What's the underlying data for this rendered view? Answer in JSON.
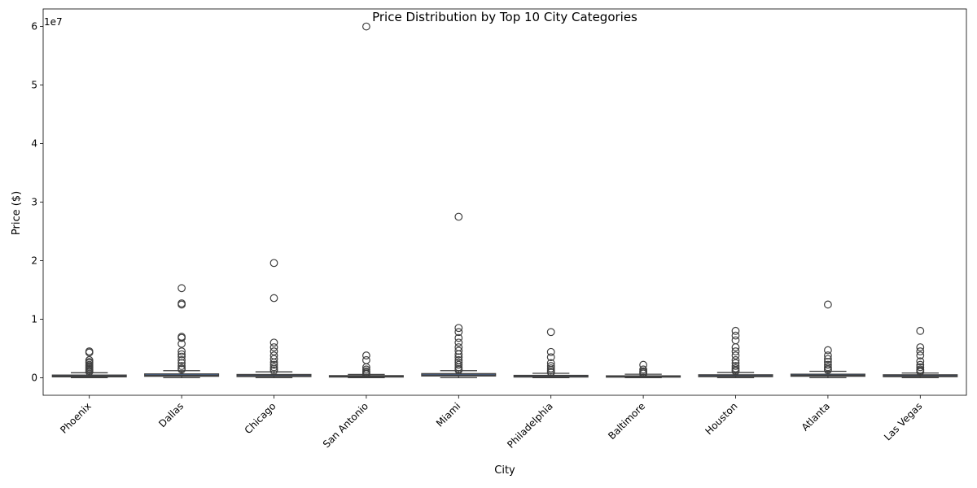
{
  "chart_data": {
    "type": "box",
    "title": "Price Distribution by Top 10 City Categories",
    "xlabel": "City",
    "ylabel": "Price ($)",
    "y_offset_label": "1e7",
    "y_ticks": [
      0,
      1,
      2,
      3,
      4,
      5,
      6
    ],
    "ylim": [
      -0.3,
      6.3
    ],
    "grid": false,
    "box_color": "#4c72b0",
    "categories": [
      "Phoenix",
      "Dallas",
      "Chicago",
      "San Antonio",
      "Miami",
      "Philadelphia",
      "Baltimore",
      "Houston",
      "Atlanta",
      "Las Vegas"
    ],
    "boxes": [
      {
        "q1": 0.015,
        "median": 0.028,
        "q3": 0.045,
        "whisker_low": 0.0,
        "whisker_high": 0.085,
        "outliers": [
          0.45,
          0.43,
          0.3,
          0.27,
          0.25,
          0.22,
          0.2,
          0.18,
          0.16,
          0.14,
          0.12,
          0.1
        ]
      },
      {
        "q1": 0.025,
        "median": 0.04,
        "q3": 0.065,
        "whisker_low": 0.0,
        "whisker_high": 0.12,
        "outliers": [
          1.53,
          1.27,
          1.25,
          0.7,
          0.68,
          0.58,
          0.45,
          0.4,
          0.36,
          0.3,
          0.25,
          0.2,
          0.16,
          0.14
        ]
      },
      {
        "q1": 0.02,
        "median": 0.035,
        "q3": 0.055,
        "whisker_low": 0.0,
        "whisker_high": 0.1,
        "outliers": [
          1.96,
          1.36,
          0.6,
          0.52,
          0.45,
          0.38,
          0.32,
          0.26,
          0.22,
          0.18,
          0.15,
          0.12
        ]
      },
      {
        "q1": 0.012,
        "median": 0.022,
        "q3": 0.035,
        "whisker_low": 0.0,
        "whisker_high": 0.055,
        "outliers": [
          6.0,
          0.38,
          0.3,
          0.18,
          0.14,
          0.11,
          0.09,
          0.07,
          0.06
        ]
      },
      {
        "q1": 0.03,
        "median": 0.045,
        "q3": 0.07,
        "whisker_low": 0.0,
        "whisker_high": 0.12,
        "outliers": [
          2.75,
          0.85,
          0.78,
          0.68,
          0.6,
          0.52,
          0.46,
          0.4,
          0.35,
          0.3,
          0.26,
          0.22,
          0.18,
          0.15,
          0.13
        ]
      },
      {
        "q1": 0.012,
        "median": 0.022,
        "q3": 0.04,
        "whisker_low": 0.0,
        "whisker_high": 0.075,
        "outliers": [
          0.78,
          0.44,
          0.35,
          0.25,
          0.2,
          0.16,
          0.13,
          0.1,
          0.09
        ]
      },
      {
        "q1": 0.01,
        "median": 0.018,
        "q3": 0.032,
        "whisker_low": 0.0,
        "whisker_high": 0.06,
        "outliers": [
          0.22,
          0.14,
          0.11,
          0.09,
          0.07
        ]
      },
      {
        "q1": 0.018,
        "median": 0.03,
        "q3": 0.05,
        "whisker_low": 0.0,
        "whisker_high": 0.09,
        "outliers": [
          0.8,
          0.72,
          0.64,
          0.52,
          0.45,
          0.38,
          0.3,
          0.25,
          0.2,
          0.16,
          0.13,
          0.11
        ]
      },
      {
        "q1": 0.025,
        "median": 0.04,
        "q3": 0.06,
        "whisker_low": 0.0,
        "whisker_high": 0.11,
        "outliers": [
          1.25,
          0.47,
          0.38,
          0.32,
          0.27,
          0.22,
          0.18,
          0.15,
          0.13
        ]
      },
      {
        "q1": 0.018,
        "median": 0.03,
        "q3": 0.05,
        "whisker_low": 0.0,
        "whisker_high": 0.08,
        "outliers": [
          0.8,
          0.52,
          0.45,
          0.38,
          0.28,
          0.22,
          0.18,
          0.14,
          0.12,
          0.1
        ]
      }
    ]
  }
}
